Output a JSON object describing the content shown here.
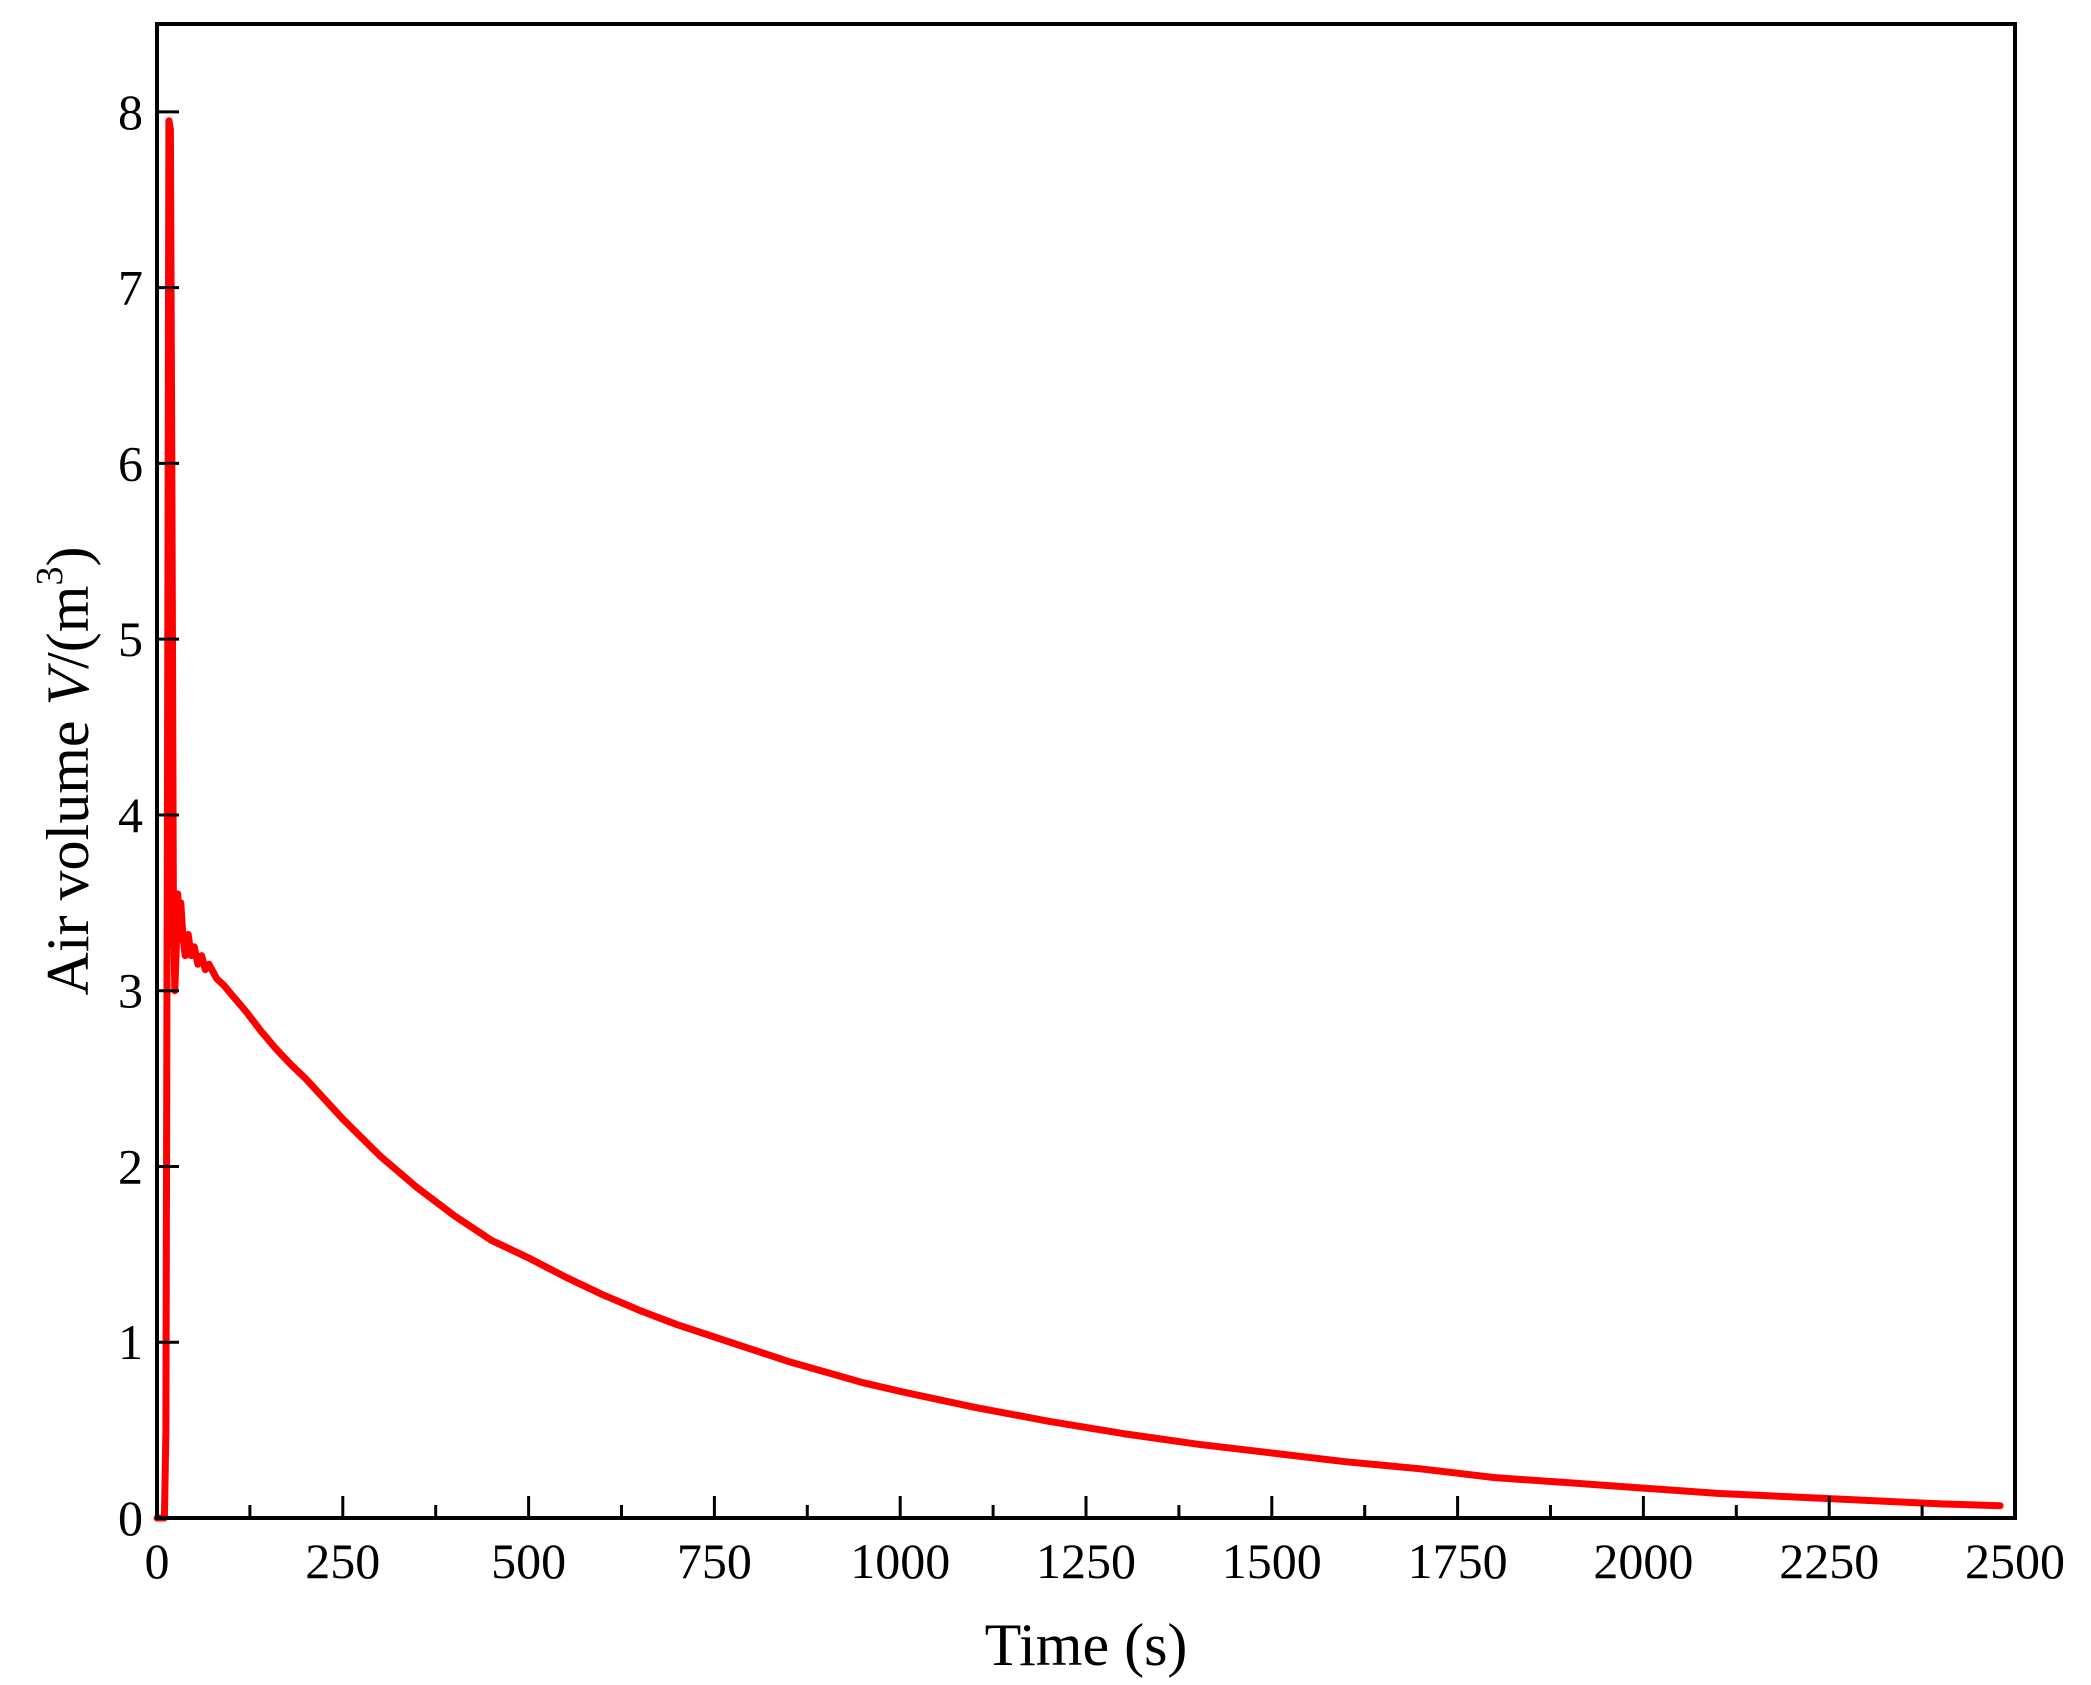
{
  "chart_data": {
    "type": "line",
    "title": "",
    "xlabel": "Time (s)",
    "ylabel": {
      "prefix": "Air volume ",
      "variable": "V",
      "unit_open": "/(m",
      "unit_exponent": "3",
      "unit_close": ")"
    },
    "xlim": [
      0,
      2500
    ],
    "ylim": [
      0,
      8.5
    ],
    "x_major_ticks": [
      0,
      250,
      500,
      750,
      1000,
      1250,
      1500,
      1750,
      2000,
      2250,
      2500
    ],
    "x_minor_step": 125,
    "y_major_ticks": [
      0,
      1,
      2,
      3,
      4,
      5,
      6,
      7,
      8
    ],
    "grid": false,
    "legend": "none",
    "series": [
      {
        "color": "#ff0000",
        "x": [
          0,
          10,
          12,
          14,
          16,
          18,
          20,
          22,
          24,
          26,
          28,
          30,
          32,
          35,
          38,
          42,
          46,
          50,
          55,
          60,
          65,
          70,
          80,
          90,
          100,
          120,
          140,
          160,
          180,
          200,
          250,
          300,
          350,
          400,
          450,
          500,
          550,
          600,
          650,
          700,
          750,
          800,
          850,
          900,
          950,
          1000,
          1100,
          1200,
          1300,
          1400,
          1500,
          1600,
          1700,
          1800,
          1900,
          2000,
          2100,
          2200,
          2300,
          2400,
          2480
        ],
        "y": [
          0,
          0,
          0.5,
          4.0,
          7.95,
          7.9,
          5.9,
          3.5,
          3.0,
          3.25,
          3.55,
          3.3,
          3.5,
          3.3,
          3.2,
          3.32,
          3.2,
          3.25,
          3.15,
          3.2,
          3.12,
          3.15,
          3.07,
          3.03,
          2.98,
          2.88,
          2.77,
          2.67,
          2.58,
          2.5,
          2.27,
          2.06,
          1.88,
          1.72,
          1.58,
          1.48,
          1.37,
          1.27,
          1.18,
          1.1,
          1.03,
          0.96,
          0.89,
          0.83,
          0.77,
          0.72,
          0.63,
          0.55,
          0.48,
          0.42,
          0.37,
          0.32,
          0.28,
          0.23,
          0.2,
          0.17,
          0.14,
          0.12,
          0.1,
          0.08,
          0.07
        ]
      }
    ]
  }
}
